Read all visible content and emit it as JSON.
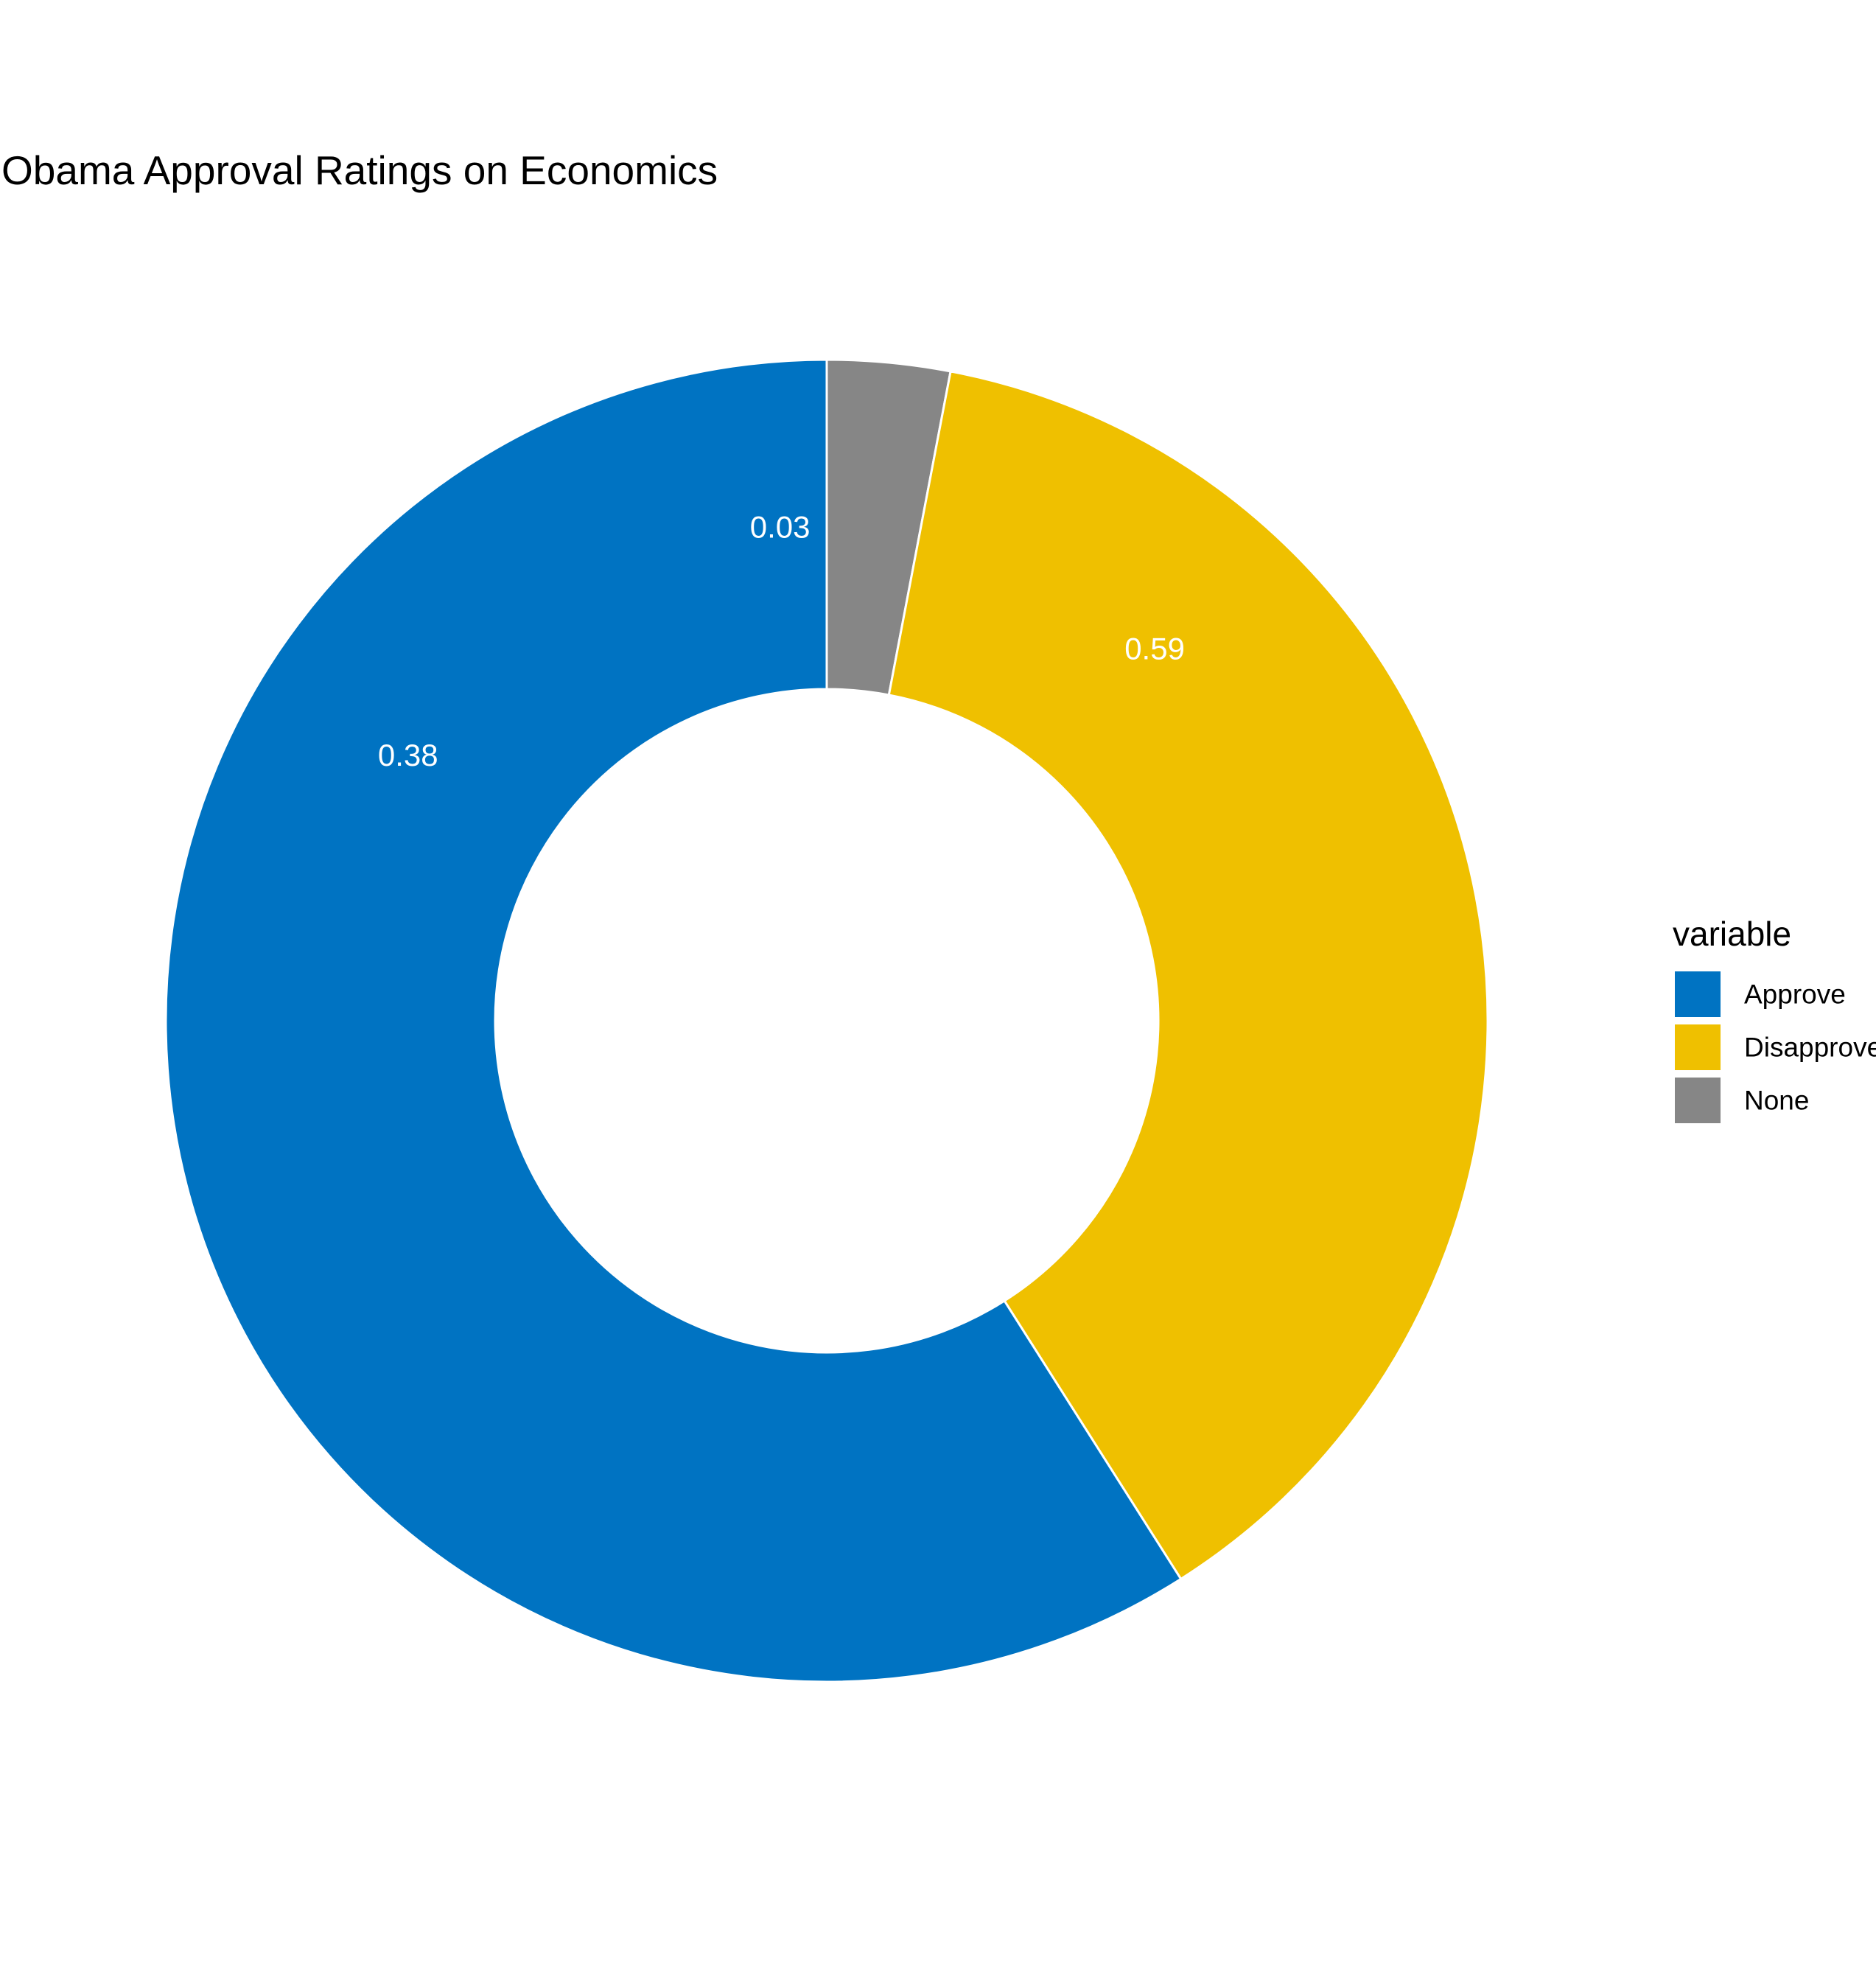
{
  "chart_data": {
    "type": "pie",
    "title": "Obama Approval Ratings on Economics",
    "legend_title": "variable",
    "legend_position": "right",
    "slices": [
      {
        "name": "Approve",
        "value": 0.59,
        "label": "0.59",
        "color": "#0073C2"
      },
      {
        "name": "Disapprove",
        "value": 0.38,
        "label": "0.38",
        "color": "#EFC000"
      },
      {
        "name": "None",
        "value": 0.03,
        "label": "0.03",
        "color": "#868686"
      }
    ]
  }
}
